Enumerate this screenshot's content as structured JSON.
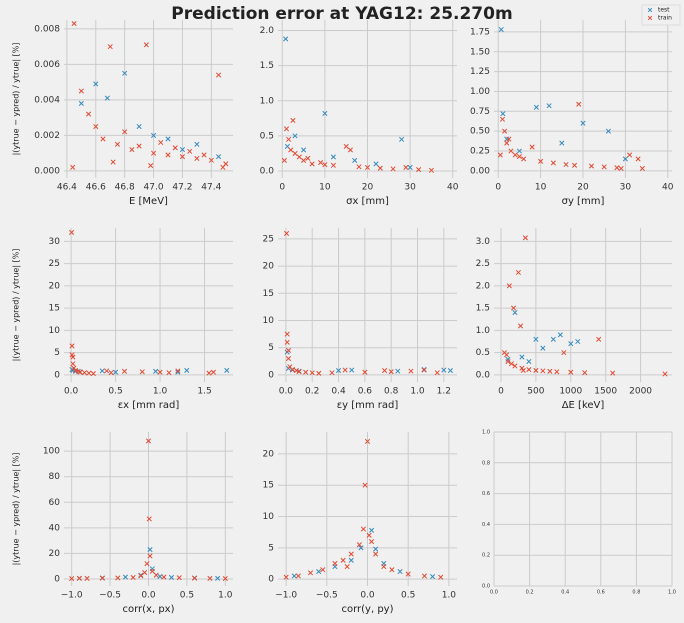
{
  "title": "Prediction error at YAG12: 25.270m",
  "chart_data": [
    {
      "type": "scatter",
      "xlabel": "E [MeV]",
      "ylabel": "|(ytrue − ypred) / ytrue| [%]",
      "xlim": [
        46.38,
        47.55
      ],
      "ylim": [
        -0.0004,
        0.0085
      ],
      "xticks": [
        46.4,
        46.6,
        46.8,
        {
          "value": 47.0,
          "label": "47.0"
        },
        47.2,
        47.4
      ],
      "yticks": [
        {
          "value": 0,
          "label": "0.000"
        },
        {
          "value": 0.002,
          "label": "0.002"
        },
        {
          "value": 0.004,
          "label": "0.004"
        },
        {
          "value": 0.006,
          "label": "0.006"
        },
        {
          "value": 0.008,
          "label": "0.008"
        }
      ],
      "grid": true,
      "series": [
        {
          "color": "#348ABD",
          "x": [
            46.5,
            46.6,
            46.68,
            46.8,
            46.9,
            47.0,
            47.1,
            47.2,
            47.3,
            47.45
          ],
          "values": [
            0.0038,
            0.0049,
            0.0041,
            0.0055,
            0.0025,
            0.002,
            0.0018,
            0.0012,
            0.0015,
            0.0008
          ]
        },
        {
          "color": "#E24A33",
          "x": [
            46.45,
            46.5,
            46.55,
            46.6,
            46.65,
            46.7,
            46.75,
            46.8,
            46.85,
            46.9,
            46.95,
            47.0,
            47.05,
            47.1,
            47.15,
            47.2,
            47.25,
            47.3,
            47.35,
            47.4,
            47.45,
            47.5,
            46.44,
            46.72,
            46.98,
            47.48
          ],
          "values": [
            0.0083,
            0.0045,
            0.0032,
            0.0025,
            0.0018,
            0.007,
            0.0015,
            0.0022,
            0.0012,
            0.0014,
            0.0071,
            0.001,
            0.0016,
            0.0009,
            0.0013,
            0.0008,
            0.0011,
            0.0007,
            0.0009,
            0.0006,
            0.0054,
            0.0004,
            0.0002,
            0.0005,
            0.0003,
            0.0002
          ]
        }
      ]
    },
    {
      "type": "scatter",
      "xlabel": "σx [mm]",
      "xlim": [
        -1,
        41
      ],
      "ylim": [
        -0.1,
        2.15
      ],
      "xticks": [
        0,
        10,
        20,
        30,
        40
      ],
      "yticks": [
        {
          "value": 0,
          "label": "0.0"
        },
        0.5,
        {
          "value": 1,
          "label": "1.0"
        },
        1.5,
        {
          "value": 2,
          "label": "2.0"
        }
      ],
      "grid": true,
      "series": [
        {
          "color": "#348ABD",
          "x": [
            0.8,
            1.2,
            3,
            5,
            10,
            12,
            17,
            22,
            28,
            30
          ],
          "values": [
            1.88,
            0.35,
            0.5,
            0.3,
            0.82,
            0.2,
            0.15,
            0.1,
            0.45,
            0.05
          ]
        },
        {
          "color": "#E24A33",
          "x": [
            0.5,
            1,
            1.5,
            2,
            3,
            4,
            5,
            7,
            9,
            12,
            15,
            18,
            20,
            23,
            26,
            29,
            32,
            35,
            2.5,
            6,
            10,
            16
          ],
          "values": [
            0.15,
            0.6,
            0.45,
            0.3,
            0.25,
            0.2,
            0.15,
            0.1,
            0.12,
            0.08,
            0.35,
            0.06,
            0.05,
            0.04,
            0.03,
            0.05,
            0.02,
            0.01,
            0.72,
            0.18,
            0.09,
            0.3
          ]
        }
      ]
    },
    {
      "type": "scatter",
      "xlabel": "σy [mm]",
      "xlim": [
        -1,
        41
      ],
      "ylim": [
        -0.09,
        1.9
      ],
      "xticks": [
        0,
        10,
        20,
        30,
        40
      ],
      "yticks": [
        {
          "value": 0,
          "label": "0.00"
        },
        0.25,
        {
          "value": 0.5,
          "label": "0.50"
        },
        0.75,
        {
          "value": 1,
          "label": "1.00"
        },
        1.25,
        {
          "value": 1.5,
          "label": "1.50"
        },
        1.75
      ],
      "grid": true,
      "legend": "upper right",
      "series": [
        {
          "name": "test",
          "color": "#348ABD",
          "x": [
            0.7,
            1.1,
            2,
            5,
            9,
            12,
            15,
            20,
            26,
            30
          ],
          "values": [
            1.78,
            0.72,
            0.4,
            0.25,
            0.8,
            0.82,
            0.35,
            0.6,
            0.5,
            0.15
          ]
        },
        {
          "name": "train",
          "color": "#E24A33",
          "x": [
            0.5,
            1,
            1.5,
            2,
            3,
            4,
            6,
            8,
            10,
            13,
            16,
            19,
            22,
            25,
            28,
            31,
            34,
            2.5,
            5,
            18,
            29,
            33
          ],
          "values": [
            0.2,
            0.65,
            0.5,
            0.35,
            0.25,
            0.2,
            0.15,
            0.3,
            0.12,
            0.1,
            0.08,
            0.84,
            0.06,
            0.05,
            0.04,
            0.2,
            0.03,
            0.4,
            0.18,
            0.07,
            0.03,
            0.15
          ]
        }
      ]
    },
    {
      "type": "scatter",
      "xlabel": "εx [mm rad]",
      "ylabel": "|(ytrue − ypred) / ytrue| [%]",
      "xlim": [
        -0.08,
        1.82
      ],
      "ylim": [
        -1.6,
        33
      ],
      "xticks": [
        {
          "value": 0,
          "label": "0.0"
        },
        0.5,
        {
          "value": 1,
          "label": "1.0"
        },
        1.5
      ],
      "yticks": [
        0,
        5,
        10,
        15,
        20,
        25,
        30
      ],
      "grid": true,
      "series": [
        {
          "color": "#348ABD",
          "x": [
            0.01,
            0.02,
            0.05,
            0.1,
            0.35,
            0.5,
            0.95,
            1.2,
            1.3,
            1.75
          ],
          "values": [
            1.2,
            1.0,
            0.8,
            0.7,
            0.9,
            0.6,
            0.8,
            0.6,
            1.0,
            1.0
          ]
        },
        {
          "color": "#E24A33",
          "x": [
            0.005,
            0.01,
            0.02,
            0.03,
            0.05,
            0.08,
            0.1,
            0.15,
            0.2,
            0.25,
            0.4,
            0.45,
            0.6,
            0.8,
            1.0,
            1.1,
            1.2,
            1.55,
            1.6,
            0.01,
            0.02
          ],
          "values": [
            32,
            6.5,
            4,
            1.5,
            1.0,
            0.8,
            0.6,
            0.5,
            0.4,
            0.3,
            0.9,
            0.5,
            0.8,
            0.7,
            0.6,
            0.5,
            0.9,
            0.4,
            0.6,
            4.5,
            2.5
          ]
        }
      ]
    },
    {
      "type": "scatter",
      "xlabel": "εy [mm rad]",
      "xlim": [
        -0.06,
        1.3
      ],
      "ylim": [
        -1.3,
        27
      ],
      "xticks": [
        {
          "value": 0,
          "label": "0.0"
        },
        0.2,
        0.4,
        0.6,
        0.8,
        {
          "value": 1,
          "label": "1.0"
        },
        1.2
      ],
      "yticks": [
        0,
        5,
        10,
        15,
        20,
        25
      ],
      "grid": true,
      "series": [
        {
          "color": "#348ABD",
          "x": [
            0.01,
            0.02,
            0.05,
            0.1,
            0.4,
            0.5,
            0.85,
            1.05,
            1.2,
            1.25
          ],
          "values": [
            4.2,
            1.2,
            0.9,
            0.7,
            0.8,
            0.9,
            0.7,
            1.0,
            0.9,
            0.8
          ]
        },
        {
          "color": "#E24A33",
          "x": [
            0.005,
            0.01,
            0.02,
            0.03,
            0.05,
            0.08,
            0.1,
            0.15,
            0.2,
            0.25,
            0.35,
            0.45,
            0.6,
            0.75,
            0.8,
            0.95,
            1.05,
            1.15,
            0.01,
            0.02
          ],
          "values": [
            26,
            7.5,
            4.5,
            1.5,
            1.0,
            0.8,
            0.6,
            0.5,
            0.4,
            0.3,
            0.4,
            0.9,
            0.5,
            0.8,
            0.6,
            0.7,
            0.9,
            0.4,
            6,
            3
          ]
        }
      ]
    },
    {
      "type": "scatter",
      "xlabel": "ΔE [keV]",
      "xlim": [
        -100,
        2450
      ],
      "ylim": [
        -0.16,
        3.3
      ],
      "xticks": [
        0,
        500,
        1000,
        1500,
        2000
      ],
      "yticks": [
        {
          "value": 0,
          "label": "0.0"
        },
        0.5,
        {
          "value": 1,
          "label": "1.0"
        },
        1.5,
        {
          "value": 2,
          "label": "2.0"
        },
        2.5,
        {
          "value": 3,
          "label": "3.0"
        }
      ],
      "grid": true,
      "series": [
        {
          "color": "#348ABD",
          "x": [
            100,
            200,
            300,
            400,
            500,
            600,
            750,
            850,
            1000,
            1100
          ],
          "values": [
            0.35,
            1.4,
            0.4,
            0.3,
            0.8,
            0.6,
            0.8,
            0.9,
            0.7,
            0.75
          ]
        },
        {
          "color": "#E24A33",
          "x": [
            50,
            80,
            100,
            120,
            150,
            180,
            200,
            250,
            300,
            350,
            400,
            500,
            600,
            700,
            800,
            900,
            1000,
            1200,
            1400,
            1600,
            2350,
            280,
            320
          ],
          "values": [
            0.5,
            0.45,
            0.3,
            2.0,
            0.25,
            1.5,
            0.2,
            2.3,
            0.15,
            3.08,
            0.12,
            0.1,
            0.09,
            0.08,
            0.07,
            0.5,
            0.06,
            0.05,
            0.8,
            0.04,
            0.02,
            1.1,
            0.1
          ]
        }
      ]
    },
    {
      "type": "scatter",
      "xlabel": "corr(x, px)",
      "ylabel": "|(ytrue − ypred) / ytrue| [%]",
      "xlim": [
        -1.1,
        1.1
      ],
      "ylim": [
        -5.5,
        115
      ],
      "xticks": [
        {
          "value": -1,
          "label": "−1.0"
        },
        {
          "value": -0.5,
          "label": "−0.5"
        },
        {
          "value": 0,
          "label": "0.0"
        },
        0.5,
        {
          "value": 1,
          "label": "1.0"
        }
      ],
      "yticks": [
        0,
        20,
        40,
        60,
        80,
        100
      ],
      "grid": true,
      "series": [
        {
          "color": "#348ABD",
          "x": [
            -0.9,
            -0.6,
            -0.3,
            -0.1,
            0.02,
            0.05,
            0.15,
            0.3,
            0.6,
            0.9
          ],
          "values": [
            0.5,
            0.8,
            1.5,
            3,
            23,
            8,
            2,
            1.2,
            0.8,
            0.5
          ]
        },
        {
          "color": "#E24A33",
          "x": [
            -1,
            -0.9,
            -0.8,
            -0.6,
            -0.4,
            -0.2,
            -0.1,
            -0.05,
            -0.02,
            0,
            0.01,
            0.02,
            0.05,
            0.1,
            0.2,
            0.4,
            0.6,
            0.8,
            1.0
          ],
          "values": [
            0.3,
            0.5,
            0.4,
            0.6,
            0.8,
            1.2,
            2.5,
            5,
            12,
            108,
            47,
            18,
            6,
            3,
            1.5,
            1.0,
            0.6,
            0.4,
            0.3
          ]
        }
      ]
    },
    {
      "type": "scatter",
      "xlabel": "corr(y, py)",
      "xlim": [
        -1.1,
        1.1
      ],
      "ylim": [
        -1.1,
        23.5
      ],
      "xticks": [
        {
          "value": -1,
          "label": "−1.0"
        },
        {
          "value": -0.5,
          "label": "−0.5"
        },
        {
          "value": 0,
          "label": "0.0"
        },
        0.5,
        {
          "value": 1,
          "label": "1.0"
        }
      ],
      "yticks": [
        0,
        5,
        10,
        15,
        20
      ],
      "grid": true,
      "series": [
        {
          "color": "#348ABD",
          "x": [
            -0.9,
            -0.6,
            -0.4,
            -0.2,
            -0.08,
            0.05,
            0.1,
            0.2,
            0.4,
            0.8
          ],
          "values": [
            0.5,
            1.2,
            2,
            3,
            5,
            7.8,
            4.8,
            2.5,
            1.2,
            0.4
          ]
        },
        {
          "color": "#E24A33",
          "x": [
            -1,
            -0.85,
            -0.7,
            -0.55,
            -0.4,
            -0.3,
            -0.2,
            -0.1,
            -0.05,
            -0.03,
            0,
            0.02,
            0.05,
            0.1,
            0.2,
            0.3,
            0.5,
            0.7,
            0.9,
            -0.25
          ],
          "values": [
            0.3,
            0.5,
            1.0,
            1.5,
            2.5,
            3,
            4,
            5.5,
            8,
            15,
            22,
            7,
            6,
            4,
            2,
            1.5,
            0.8,
            0.5,
            0.3,
            2
          ]
        }
      ]
    },
    {
      "type": "scatter",
      "xlim": [
        0,
        1
      ],
      "ylim": [
        0,
        1
      ],
      "xticks": [
        {
          "value": 0,
          "label": "0.0"
        },
        0.2,
        0.4,
        0.6,
        0.8,
        {
          "value": 1,
          "label": "1.0"
        }
      ],
      "yticks": [
        {
          "value": 0,
          "label": "0.0"
        },
        0.2,
        0.4,
        0.6,
        0.8,
        {
          "value": 1,
          "label": "1.0"
        }
      ],
      "grid": true,
      "series": []
    }
  ]
}
